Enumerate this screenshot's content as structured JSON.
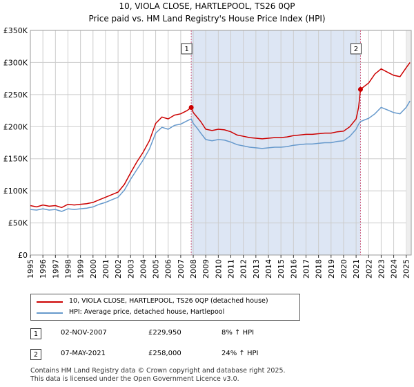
{
  "colors": {
    "red": "#cc0000",
    "blue": "#6699cc",
    "shade": "#dde6f4",
    "grid": "#cccccc",
    "vline": "#d06080"
  },
  "chart_data": {
    "type": "line",
    "title": "10, VIOLA CLOSE, HARTLEPOOL, TS26 0QP",
    "subtitle": "Price paid vs. HM Land Registry's House Price Index (HPI)",
    "xlabel": "",
    "ylabel": "",
    "xlim": [
      1995,
      2025.4
    ],
    "ylim": [
      0,
      350000
    ],
    "y_ticks": [
      0,
      50000,
      100000,
      150000,
      200000,
      250000,
      300000,
      350000
    ],
    "y_tick_labels": [
      "£0",
      "£50K",
      "£100K",
      "£150K",
      "£200K",
      "£250K",
      "£300K",
      "£350K"
    ],
    "x_ticks": [
      1995,
      1996,
      1997,
      1998,
      1999,
      2000,
      2001,
      2002,
      2003,
      2004,
      2005,
      2006,
      2007,
      2008,
      2009,
      2010,
      2011,
      2012,
      2013,
      2014,
      2015,
      2016,
      2017,
      2018,
      2019,
      2020,
      2021,
      2022,
      2023,
      2024,
      2025
    ],
    "shaded_range": [
      2007.84,
      2021.35
    ],
    "series": [
      {
        "name": "10, VIOLA CLOSE, HARTLEPOOL, TS26 0QP (detached house)",
        "color": "#cc0000",
        "x": [
          1995,
          1995.5,
          1996,
          1996.5,
          1997,
          1997.5,
          1998,
          1998.5,
          1999,
          1999.5,
          2000,
          2000.5,
          2001,
          2001.5,
          2002,
          2002.5,
          2003,
          2003.5,
          2004,
          2004.5,
          2005,
          2005.5,
          2006,
          2006.5,
          2007,
          2007.5,
          2007.84,
          2008,
          2008.3,
          2008.6,
          2009,
          2009.5,
          2010,
          2010.5,
          2011,
          2011.5,
          2012,
          2012.5,
          2013,
          2013.5,
          2014,
          2014.5,
          2015,
          2015.5,
          2016,
          2016.5,
          2017,
          2017.5,
          2018,
          2018.5,
          2019,
          2019.5,
          2020,
          2020.5,
          2021,
          2021.2,
          2021.35,
          2021.6,
          2022,
          2022.5,
          2023,
          2023.5,
          2024,
          2024.5,
          2025,
          2025.3
        ],
        "values": [
          77000,
          75000,
          78000,
          76000,
          77000,
          74000,
          79000,
          78000,
          79000,
          80000,
          82000,
          86000,
          90000,
          94000,
          98000,
          110000,
          128000,
          145000,
          160000,
          178000,
          205000,
          215000,
          212000,
          218000,
          220000,
          225000,
          229950,
          222000,
          215000,
          208000,
          196000,
          194000,
          196000,
          195000,
          192000,
          187000,
          185000,
          183000,
          182000,
          181000,
          182000,
          183000,
          183000,
          184000,
          186000,
          187000,
          188000,
          188000,
          189000,
          190000,
          190000,
          192000,
          193000,
          200000,
          212000,
          230000,
          258000,
          262000,
          268000,
          282000,
          290000,
          285000,
          280000,
          278000,
          292000,
          300000
        ]
      },
      {
        "name": "HPI: Average price, detached house, Hartlepool",
        "color": "#6699cc",
        "x": [
          1995,
          1995.5,
          1996,
          1996.5,
          1997,
          1997.5,
          1998,
          1998.5,
          1999,
          1999.5,
          2000,
          2000.5,
          2001,
          2001.5,
          2002,
          2002.5,
          2003,
          2003.5,
          2004,
          2004.5,
          2005,
          2005.5,
          2006,
          2006.5,
          2007,
          2007.5,
          2007.84,
          2008,
          2008.3,
          2008.6,
          2009,
          2009.5,
          2010,
          2010.5,
          2011,
          2011.5,
          2012,
          2012.5,
          2013,
          2013.5,
          2014,
          2014.5,
          2015,
          2015.5,
          2016,
          2016.5,
          2017,
          2017.5,
          2018,
          2018.5,
          2019,
          2019.5,
          2020,
          2020.5,
          2021,
          2021.2,
          2021.35,
          2021.6,
          2022,
          2022.5,
          2023,
          2023.5,
          2024,
          2024.5,
          2025,
          2025.3
        ],
        "values": [
          71000,
          70000,
          72000,
          70000,
          71000,
          68000,
          72000,
          71000,
          72000,
          73000,
          75000,
          79000,
          82000,
          86000,
          90000,
          101000,
          118000,
          133000,
          148000,
          165000,
          190000,
          199000,
          196000,
          202000,
          204000,
          209000,
          212000,
          205000,
          198000,
          190000,
          180000,
          178000,
          180000,
          179000,
          176000,
          172000,
          170000,
          168000,
          167000,
          166000,
          167000,
          168000,
          168000,
          169000,
          171000,
          172000,
          173000,
          173000,
          174000,
          175000,
          175000,
          177000,
          178000,
          185000,
          196000,
          204000,
          208000,
          210000,
          213000,
          220000,
          230000,
          226000,
          222000,
          220000,
          230000,
          240000
        ]
      }
    ],
    "annotations": [
      {
        "label": "1",
        "x": 2007.84,
        "y": 229950
      },
      {
        "label": "2",
        "x": 2021.35,
        "y": 258000
      }
    ]
  },
  "legend": {
    "red_label": "10, VIOLA CLOSE, HARTLEPOOL, TS26 0QP (detached house)",
    "blue_label": "HPI: Average price, detached house, Hartlepool"
  },
  "sales": [
    {
      "num": "1",
      "date": "02-NOV-2007",
      "price": "£229,950",
      "hpi": "8% ↑ HPI"
    },
    {
      "num": "2",
      "date": "07-MAY-2021",
      "price": "£258,000",
      "hpi": "24% ↑ HPI"
    }
  ],
  "footer": {
    "line1": "Contains HM Land Registry data © Crown copyright and database right 2025.",
    "line2": "This data is licensed under the Open Government Licence v3.0."
  }
}
